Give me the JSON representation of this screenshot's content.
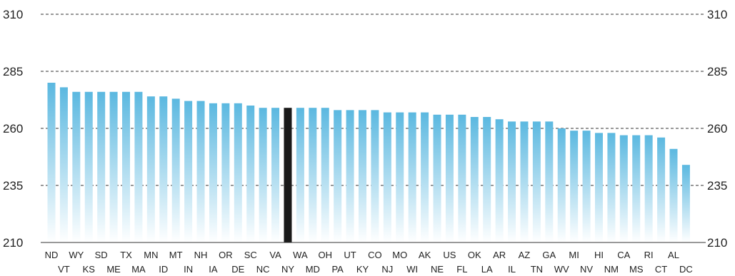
{
  "chart_data": {
    "type": "bar",
    "title": "",
    "xlabel": "",
    "ylabel": "",
    "ylim": [
      210,
      310
    ],
    "yticks": [
      210,
      235,
      260,
      285,
      310
    ],
    "grid": true,
    "categories": [
      "ND",
      "VT",
      "WY",
      "KS",
      "SD",
      "ME",
      "TX",
      "MA",
      "MN",
      "ID",
      "MT",
      "IN",
      "NH",
      "IA",
      "OR",
      "DE",
      "SC",
      "NC",
      "VA",
      "NY",
      "WA",
      "MD",
      "OH",
      "PA",
      "UT",
      "KY",
      "CO",
      "NJ",
      "MO",
      "WI",
      "AK",
      "NE",
      "US",
      "FL",
      "OK",
      "LA",
      "AR",
      "IL",
      "AZ",
      "TN",
      "GA",
      "WV",
      "MI",
      "NV",
      "HI",
      "NM",
      "CA",
      "MS",
      "RI",
      "CT",
      "AL",
      "DC"
    ],
    "values": [
      280,
      278,
      276,
      276,
      276,
      276,
      276,
      276,
      274,
      274,
      273,
      272,
      272,
      271,
      271,
      271,
      270,
      269,
      269,
      269,
      269,
      269,
      269,
      268,
      268,
      268,
      268,
      267,
      267,
      267,
      267,
      266,
      266,
      266,
      265,
      265,
      264,
      263,
      263,
      263,
      263,
      260,
      259,
      259,
      258,
      258,
      257,
      257,
      257,
      256,
      251,
      244
    ],
    "highlight_category": "NY",
    "colors": {
      "bar_top": "#5bb8e0",
      "bar_bottom": "#ffffff",
      "highlight": "#1a1a1a"
    }
  }
}
